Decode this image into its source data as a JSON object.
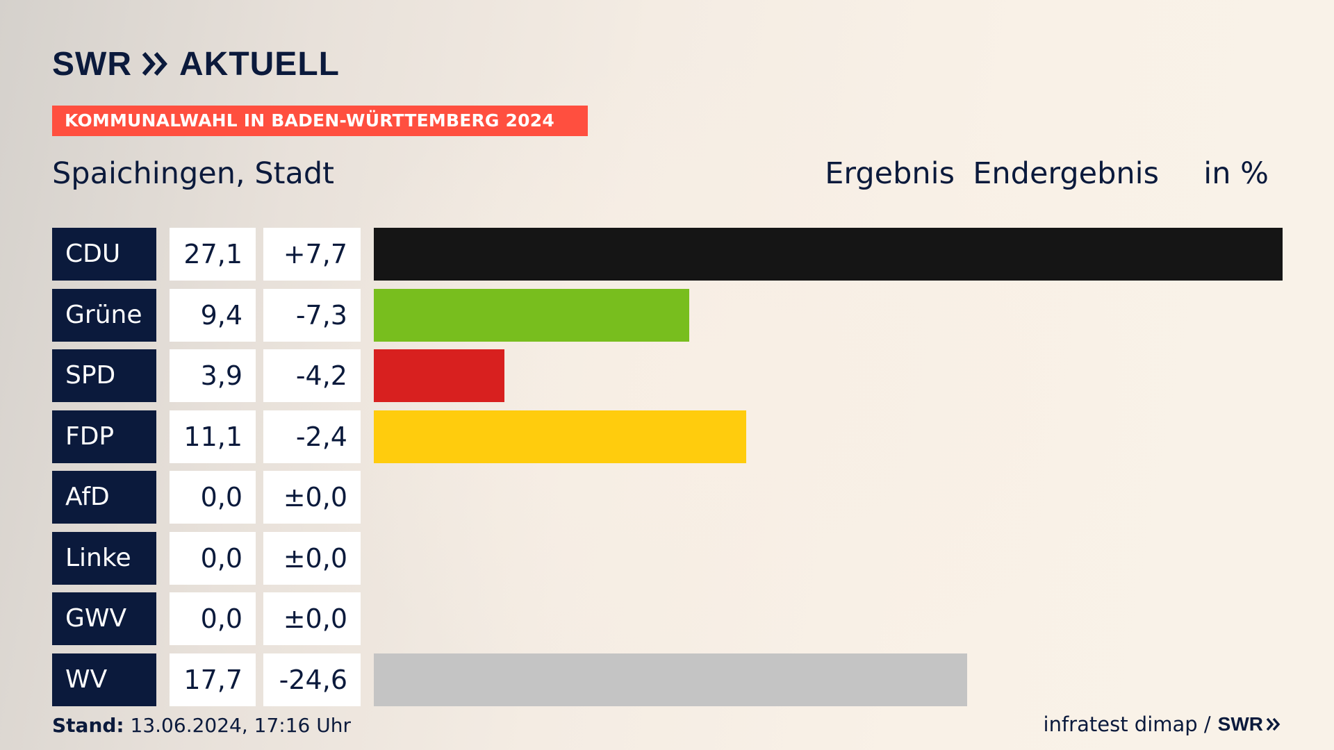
{
  "brand": {
    "logo_swr": "SWR",
    "logo_aktuell": "AKTUELL"
  },
  "banner": "KOMMUNALWAHL IN BADEN-WÜRTTEMBERG 2024",
  "place": "Spaichingen, Stadt",
  "headers": {
    "ergebnis": "Ergebnis",
    "endergebnis": "Endergebnis",
    "unit": "in %"
  },
  "chart_data": {
    "type": "bar",
    "orientation": "horizontal",
    "title": "Spaichingen, Stadt",
    "unit": "in %",
    "categories": [
      "CDU",
      "Grüne",
      "SPD",
      "FDP",
      "AfD",
      "Linke",
      "GWV",
      "WV"
    ],
    "values": [
      27.1,
      9.4,
      3.9,
      11.1,
      0.0,
      0.0,
      0.0,
      17.7
    ],
    "value_labels": [
      "27,1",
      "9,4",
      "3,9",
      "11,1",
      "0,0",
      "0,0",
      "0,0",
      "17,7"
    ],
    "change_labels": [
      "+7,7",
      "-7,3",
      "-4,2",
      "-2,4",
      "±0,0",
      "±0,0",
      "±0,0",
      "-24,6"
    ],
    "changes": [
      7.7,
      -7.3,
      -4.2,
      -2.4,
      0.0,
      0.0,
      0.0,
      -24.6
    ],
    "colors": [
      "#151515",
      "#78be1e",
      "#d8201f",
      "#ffcc0d",
      "#0096d3",
      "#b91c66",
      "#6d6d6d",
      "#c4c4c4"
    ],
    "xlim": [
      0,
      27.1
    ]
  },
  "footer": {
    "stand_label": "Stand:",
    "stand_value": "13.06.2024, 17:16 Uhr",
    "source": "infratest dimap /",
    "source_brand": "SWR"
  }
}
